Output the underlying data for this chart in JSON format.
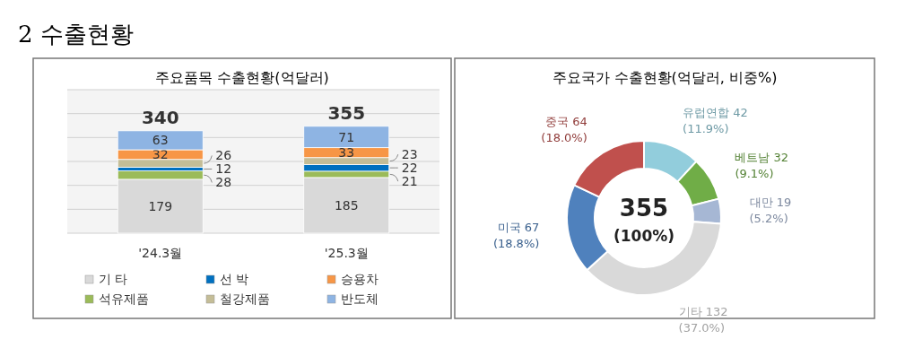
{
  "chart_data": [
    {
      "type": "bar",
      "title": "주요품목 수출현황(억달러)",
      "stacked": true,
      "categories": [
        "'24.3월",
        "'25.3월"
      ],
      "series": [
        {
          "name": "기 타",
          "color": "#d9d9d9",
          "values": [
            179,
            185
          ]
        },
        {
          "name": "석유제품",
          "color": "#9bbb59",
          "values": [
            28,
            21
          ]
        },
        {
          "name": "선 박",
          "color": "#0070c0",
          "values": [
            12,
            22
          ]
        },
        {
          "name": "철강제품",
          "color": "#c4bd97",
          "values": [
            26,
            23
          ]
        },
        {
          "name": "승용차",
          "color": "#f79646",
          "values": [
            32,
            33
          ]
        },
        {
          "name": "반도체",
          "color": "#8eb4e3",
          "values": [
            63,
            71
          ]
        }
      ],
      "data_labels": true,
      "totals": [
        "340",
        "355"
      ],
      "legend": "bottom",
      "grid": "y",
      "annotations": [
        "2  수출현황"
      ]
    },
    {
      "type": "donut",
      "title": "주요국가 수출현황(억달러, 비중%)",
      "categories": [
        "유럽연합 42",
        "베트남 32",
        "대만 19",
        "기타 132",
        "미국 67",
        "중국 64"
      ],
      "values": [
        11.9,
        9.1,
        5.2,
        37.0,
        18.8,
        18.0
      ],
      "colors": [
        "#92cddc",
        "#70ad47",
        "#a6b7d4",
        "#d9d9d9",
        "#4f81bd",
        "#c0504d"
      ],
      "value_labels": [
        "(11.9%)",
        "(9.1%)",
        "(5.2%)",
        "(37.0%)",
        "(18.8%)",
        "(18.0%)"
      ],
      "annotations": [
        "355",
        "(100%)"
      ]
    }
  ]
}
